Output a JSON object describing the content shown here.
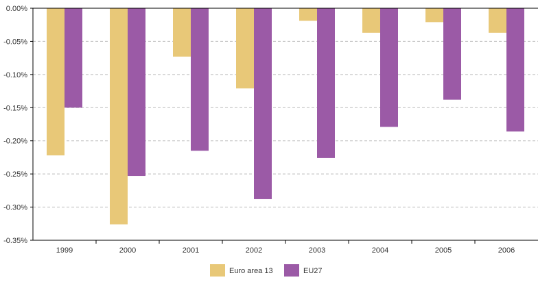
{
  "chart_data": {
    "type": "bar",
    "title": "",
    "xlabel": "",
    "ylabel": "",
    "categories": [
      "1999",
      "2000",
      "2001",
      "2002",
      "2003",
      "2004",
      "2005",
      "2006"
    ],
    "series": [
      {
        "name": "Euro area 13",
        "color": "#e8c878",
        "values": [
          -0.222,
          -0.326,
          -0.073,
          -0.121,
          -0.019,
          -0.037,
          -0.021,
          -0.037
        ]
      },
      {
        "name": "EU27",
        "color": "#9b5aa6",
        "values": [
          -0.15,
          -0.253,
          -0.215,
          -0.288,
          -0.226,
          -0.179,
          -0.138,
          -0.186
        ]
      }
    ],
    "ylim": [
      -0.35,
      0
    ],
    "yticks": [
      0,
      -0.05,
      -0.1,
      -0.15,
      -0.2,
      -0.25,
      -0.3,
      -0.35
    ],
    "ytick_labels": [
      "0.00%",
      "-0.05%",
      "-0.10%",
      "-0.15%",
      "-0.20%",
      "-0.25%",
      "-0.30%",
      "-0.35%"
    ],
    "grid": true,
    "legend": "bottom-center"
  }
}
